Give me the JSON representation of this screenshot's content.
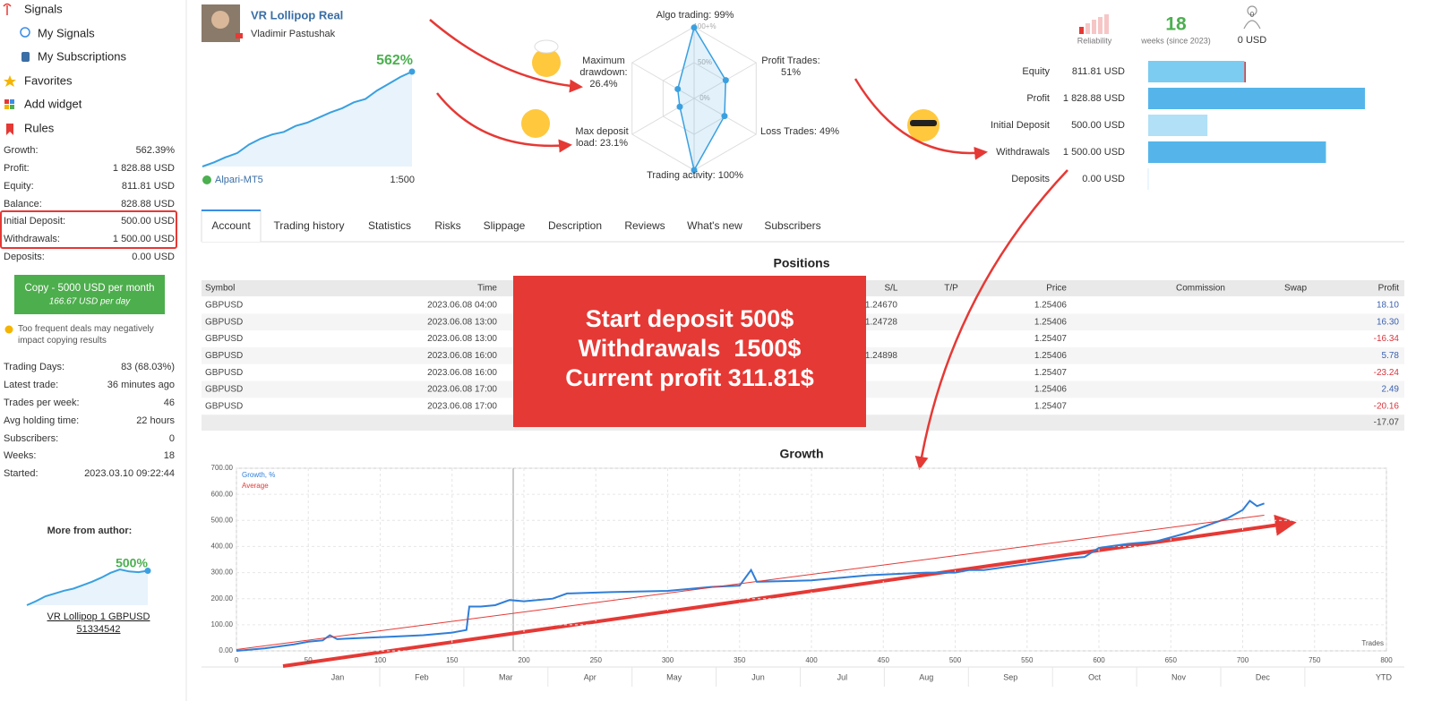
{
  "sidebar": {
    "nav": [
      "Signals",
      "My Signals",
      "My Subscriptions",
      "Favorites",
      "Add widget",
      "Rules"
    ],
    "stats": [
      [
        "Growth:",
        "562.39%"
      ],
      [
        "Profit:",
        "1 828.88 USD"
      ],
      [
        "Equity:",
        "811.81 USD"
      ],
      [
        "Balance:",
        "828.88 USD"
      ],
      [
        "Initial Deposit:",
        "500.00 USD"
      ],
      [
        "Withdrawals:",
        "1 500.00 USD"
      ],
      [
        "Deposits:",
        "0.00 USD"
      ]
    ],
    "copy_button": {
      "label": "Copy - 5000 USD per month",
      "sublabel": "166.67 USD per day"
    },
    "note": "Too frequent deals may negatively impact copying results",
    "stats2": [
      [
        "Trading Days:",
        "83 (68.03%)"
      ],
      [
        "Latest trade:",
        "36 minutes ago"
      ],
      [
        "Trades per week:",
        "46"
      ],
      [
        "Avg holding time:",
        "22 hours"
      ],
      [
        "Subscribers:",
        "0"
      ],
      [
        "Weeks:",
        "18"
      ],
      [
        "Started:",
        "2023.03.10 09:22:44"
      ]
    ],
    "more_from_author": {
      "title": "More from author:",
      "growth_label": "500%",
      "chart": {
        "type": "line",
        "color": "#3aa0e0",
        "values": [
          0,
          60,
          130,
          170,
          210,
          240,
          290,
          340,
          400,
          470,
          520,
          490,
          480,
          500
        ]
      },
      "name": "VR Lollipop 1 GBPUSD",
      "id": "51334542"
    }
  },
  "header": {
    "signal_name": "VR Lollipop Real",
    "author": "Vladimir Pastushak",
    "growth_label": "562%",
    "broker": "Alpari-MT5",
    "leverage": "1:500",
    "chart": {
      "type": "line",
      "color": "#3aa0e0",
      "values": [
        0,
        25,
        55,
        80,
        130,
        165,
        190,
        205,
        240,
        260,
        290,
        320,
        345,
        380,
        400,
        450,
        490,
        530,
        562
      ]
    }
  },
  "radar": {
    "type": "radar",
    "categories": [
      "Algo trading:",
      "Profit Trades:",
      "Loss Trades:",
      "Trading activity:",
      "Max deposit load:",
      "Maximum drawdown:"
    ],
    "values": [
      99,
      51,
      49,
      100,
      23.1,
      26.4
    ],
    "value_labels": [
      "99%",
      "51%",
      "49%",
      "100%",
      "23.1%",
      "26.4%"
    ],
    "ticks": [
      {
        "value": 100,
        "label": "100+%"
      },
      {
        "value": 50,
        "label": "50%"
      },
      {
        "value": 0,
        "label": "0%"
      }
    ],
    "color": "#3aa0e0"
  },
  "summary": {
    "reliability_label": "Reliability",
    "weeks": "18",
    "weeks_label": "weeks (since 2023)",
    "subscribers": "0",
    "subscribers_funds": "0 USD"
  },
  "balance_chart": {
    "type": "bar",
    "categories": [
      "Equity",
      "Profit",
      "Initial Deposit",
      "Withdrawals",
      "Deposits"
    ],
    "values": [
      811.81,
      1828.88,
      500,
      1500,
      0
    ],
    "value_labels": [
      "811.81 USD",
      "1 828.88 USD",
      "500.00 USD",
      "1 500.00 USD",
      "0.00 USD"
    ],
    "colors": [
      "#7ccbf1",
      "#55b5ea",
      "#b1e0f7",
      "#55b5ea",
      "#55b5ea"
    ]
  },
  "tabs": [
    "Account",
    "Trading history",
    "Statistics",
    "Risks",
    "Slippage",
    "Description",
    "Reviews",
    "What's new",
    "Subscribers"
  ],
  "positions": {
    "title": "Positions",
    "columns": [
      "Symbol",
      "Time",
      "S/L",
      "T/P",
      "Price",
      "Commission",
      "Swap",
      "Profit"
    ],
    "rows": [
      [
        "GBPUSD",
        "2023.06.08 04:00",
        "1.24670",
        null,
        "1.25406",
        null,
        null,
        "18.10"
      ],
      [
        "GBPUSD",
        "2023.06.08 13:00",
        "1.24728",
        null,
        "1.25406",
        null,
        null,
        "16.30"
      ],
      [
        "GBPUSD",
        "2023.06.08 13:00",
        null,
        null,
        "1.25407",
        null,
        null,
        "-16.34"
      ],
      [
        "GBPUSD",
        "2023.06.08 16:00",
        "1.24898",
        null,
        "1.25406",
        null,
        null,
        "5.78"
      ],
      [
        "GBPUSD",
        "2023.06.08 16:00",
        null,
        null,
        "1.25407",
        null,
        null,
        "-23.24"
      ],
      [
        "GBPUSD",
        "2023.06.08 17:00",
        null,
        null,
        "1.25406",
        null,
        null,
        "2.49"
      ],
      [
        "GBPUSD",
        "2023.06.08 17:00",
        null,
        null,
        "1.25407",
        null,
        null,
        "-20.16"
      ]
    ],
    "total": "-17.07"
  },
  "overlay": [
    "Start deposit 500$",
    "Withdrawals  1500$",
    "Current profit 311.81$"
  ],
  "growth_chart": {
    "type": "line",
    "title": "Growth",
    "x_label": "Trades",
    "series": [
      {
        "name": "Growth, %",
        "color": "#2f7ed8",
        "x": [
          0,
          20,
          40,
          50,
          60,
          65,
          70,
          90,
          110,
          130,
          150,
          160,
          162,
          170,
          180,
          190,
          200,
          220,
          230,
          260,
          300,
          330,
          350,
          358,
          362,
          400,
          440,
          480,
          500,
          510,
          520,
          540,
          560,
          580,
          590,
          600,
          620,
          640,
          660,
          680,
          690,
          700,
          705,
          710,
          715
        ],
        "values": [
          0,
          10,
          25,
          35,
          40,
          60,
          45,
          50,
          55,
          60,
          70,
          80,
          170,
          170,
          175,
          195,
          190,
          200,
          220,
          225,
          230,
          245,
          250,
          310,
          265,
          270,
          290,
          300,
          300,
          310,
          310,
          325,
          340,
          355,
          360,
          395,
          410,
          420,
          450,
          490,
          510,
          540,
          575,
          555,
          565
        ]
      },
      {
        "name": "Average",
        "color": "#e53935",
        "x": [
          0,
          715
        ],
        "values": [
          5,
          520
        ]
      }
    ],
    "xlim": [
      0,
      800
    ],
    "xticks": [
      0,
      50,
      100,
      150,
      200,
      250,
      300,
      350,
      400,
      450,
      500,
      550,
      600,
      650,
      700,
      750,
      800
    ],
    "ylim": [
      0,
      700
    ],
    "yticks": [
      {
        "value": 0,
        "label": "0.00"
      },
      {
        "value": 100,
        "label": "100.00"
      },
      {
        "value": 200,
        "label": "200.00"
      },
      {
        "value": 300,
        "label": "300.00"
      },
      {
        "value": 400,
        "label": "400.00"
      },
      {
        "value": 500,
        "label": "500.00"
      },
      {
        "value": 600,
        "label": "600.00"
      },
      {
        "value": 700,
        "label": "700.00"
      }
    ],
    "months": [
      "Jan",
      "Feb",
      "Mar",
      "Apr",
      "May",
      "Jun",
      "Jul",
      "Aug",
      "Sep",
      "Oct",
      "Nov",
      "Dec"
    ],
    "period_label": "YTD",
    "grid": true
  }
}
